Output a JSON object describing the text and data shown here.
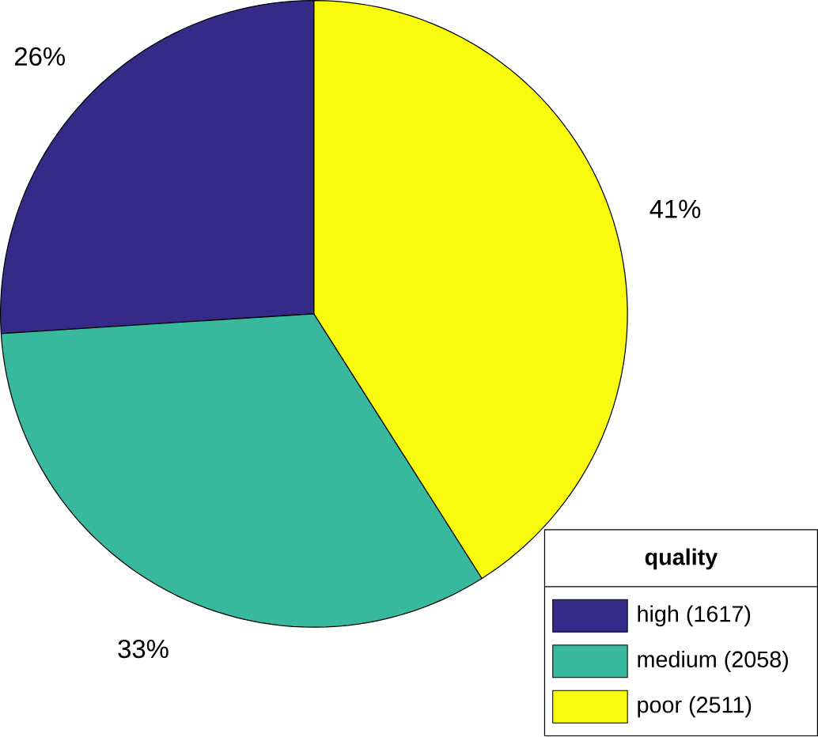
{
  "chart_data": {
    "type": "pie",
    "categories": [
      "high (1617)",
      "medium (2058)",
      "poor (2511)"
    ],
    "values": [
      26,
      33,
      41
    ],
    "colors": [
      "#352a87",
      "#38b99e",
      "#f9fb0e"
    ],
    "value_labels": [
      "26%",
      "33%",
      "41%"
    ],
    "legend_title": "quality",
    "legend": "bottom right"
  }
}
